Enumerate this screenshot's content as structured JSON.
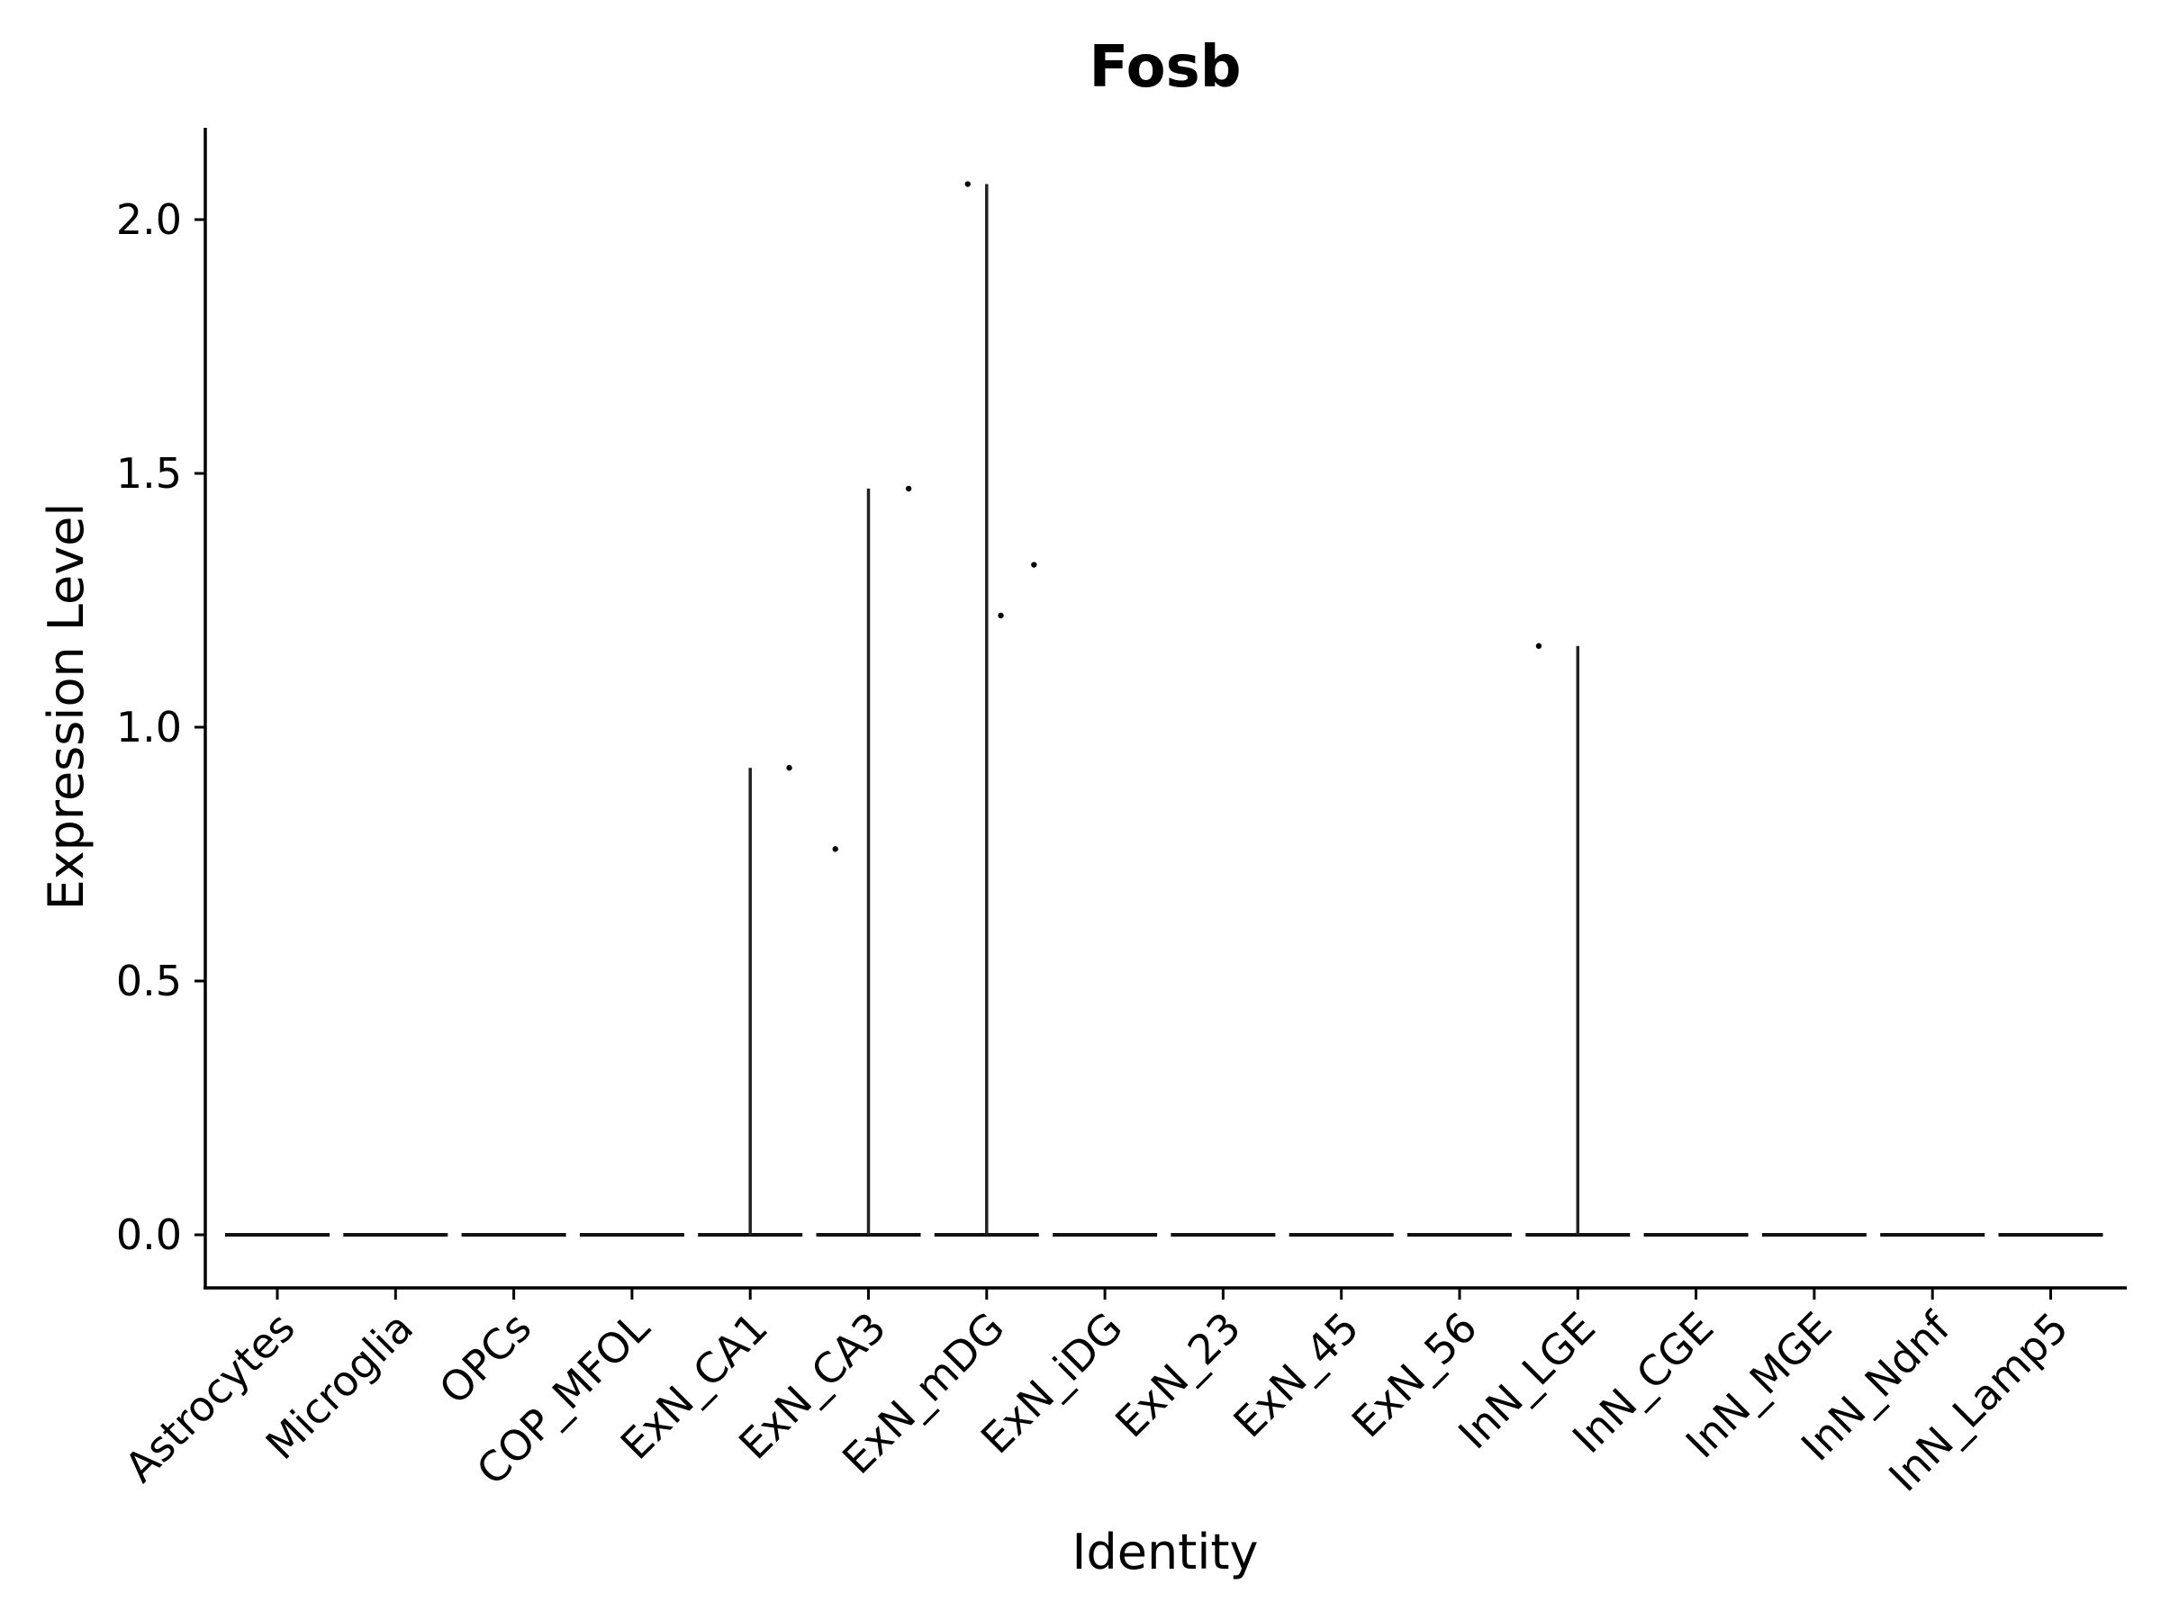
{
  "chart_data": {
    "type": "violin",
    "title": "Fosb",
    "xlabel": "Identity",
    "ylabel": "Expression Level",
    "ylim": [
      -0.1,
      2.18
    ],
    "yticks": [
      0.0,
      0.5,
      1.0,
      1.5,
      2.0
    ],
    "ytick_labels": [
      "0.0",
      "0.5",
      "1.0",
      "1.5",
      "2.0"
    ],
    "categories": [
      "Astrocytes",
      "Microglia",
      "OPCs",
      "COP_MFOL",
      "ExN_CA1",
      "ExN_CA3",
      "ExN_mDG",
      "ExN_iDG",
      "ExN_23",
      "ExN_45",
      "ExN_56",
      "InN_LGE",
      "InN_CGE",
      "InN_MGE",
      "InN_Ndnf",
      "InN_Lamp5"
    ],
    "max_values": [
      0,
      0,
      0,
      0,
      0.92,
      1.47,
      2.07,
      0,
      0,
      0,
      0,
      1.16,
      0,
      0,
      0,
      0
    ],
    "nonzero_points": [
      {
        "category": "ExN_CA1",
        "offset": 0.33,
        "value": 0.92
      },
      {
        "category": "ExN_CA3",
        "offset": -0.28,
        "value": 0.76
      },
      {
        "category": "ExN_CA3",
        "offset": 0.34,
        "value": 1.47
      },
      {
        "category": "ExN_mDG",
        "offset": -0.16,
        "value": 2.07
      },
      {
        "category": "ExN_mDG",
        "offset": 0.12,
        "value": 1.22
      },
      {
        "category": "ExN_mDG",
        "offset": 0.4,
        "value": 1.32
      },
      {
        "category": "InN_LGE",
        "offset": -0.33,
        "value": 1.16
      }
    ],
    "color": "#000000",
    "grid": false,
    "legend": "none"
  }
}
